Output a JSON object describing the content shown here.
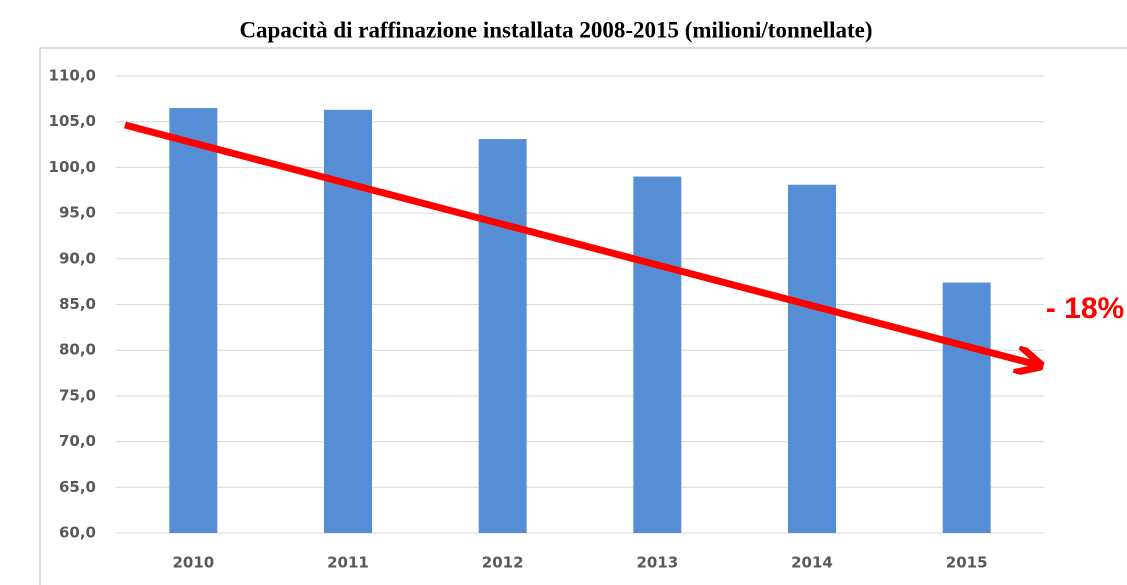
{
  "chart_data": {
    "type": "bar",
    "title": "Capacità di raffinazione installata 2008-2015 (milioni/tonnellate)",
    "categories": [
      "2010",
      "2011",
      "2012",
      "2013",
      "2014",
      "2015"
    ],
    "values": [
      106.5,
      106.3,
      103.1,
      99.0,
      98.1,
      87.4
    ],
    "color": "#558ed5",
    "ylim": [
      60,
      110
    ],
    "yticks": [
      {
        "value": 60,
        "label": "60,0"
      },
      {
        "value": 65,
        "label": "65,0"
      },
      {
        "value": 70,
        "label": "70,0"
      },
      {
        "value": 75,
        "label": "75,0"
      },
      {
        "value": 80,
        "label": "80,0"
      },
      {
        "value": 85,
        "label": "85,0"
      },
      {
        "value": 90,
        "label": "90,0"
      },
      {
        "value": 95,
        "label": "95,0"
      },
      {
        "value": 100,
        "label": "100,0"
      },
      {
        "value": 105,
        "label": "105,0"
      },
      {
        "value": 110,
        "label": "110,0"
      }
    ],
    "grid": true,
    "annotation": "- 18%"
  }
}
